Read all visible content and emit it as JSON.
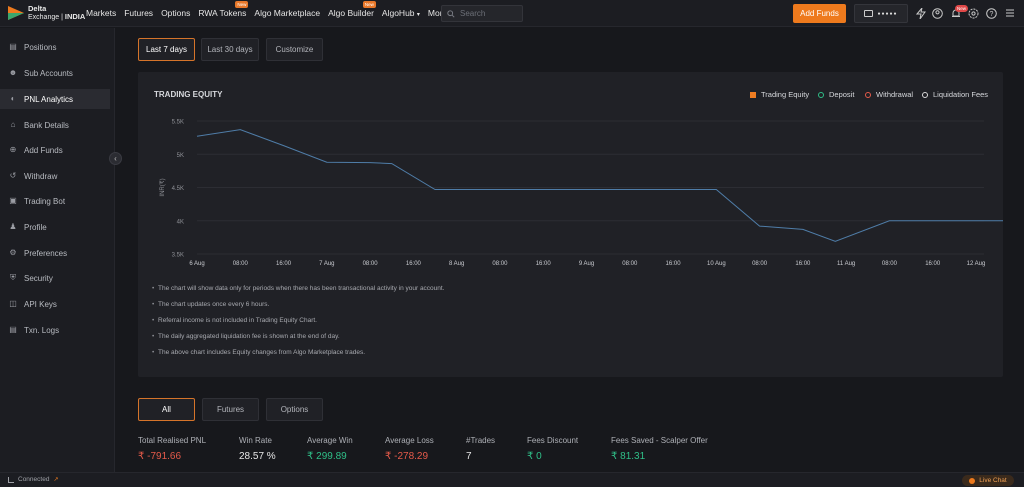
{
  "brand": {
    "line1": "Delta",
    "line2": "Exchange",
    "region": "INDIA"
  },
  "nav": [
    {
      "label": "Markets",
      "badge": ""
    },
    {
      "label": "Futures",
      "badge": ""
    },
    {
      "label": "Options",
      "badge": ""
    },
    {
      "label": "RWA Tokens",
      "badge": "New"
    },
    {
      "label": "Algo Marketplace",
      "badge": ""
    },
    {
      "label": "Algo Builder",
      "badge": "New"
    },
    {
      "label": "AlgoHub",
      "badge": "",
      "dropdown": true
    },
    {
      "label": "More",
      "badge": "",
      "dropdown": true
    }
  ],
  "search": {
    "placeholder": "Search"
  },
  "header": {
    "add_funds": "Add Funds",
    "wallet_masked": "●●●●●",
    "notif_badge": "New"
  },
  "sidebar": {
    "items": [
      {
        "label": "Positions",
        "icon": "positions-icon"
      },
      {
        "label": "Sub Accounts",
        "icon": "user-icon"
      },
      {
        "label": "PNL Analytics",
        "icon": "analytics-icon",
        "active": true
      },
      {
        "label": "Bank Details",
        "icon": "bank-icon"
      },
      {
        "label": "Add Funds",
        "icon": "plus-circle-icon"
      },
      {
        "label": "Withdraw",
        "icon": "withdraw-icon"
      },
      {
        "label": "Trading Bot",
        "icon": "bot-icon"
      },
      {
        "label": "Profile",
        "icon": "profile-icon"
      },
      {
        "label": "Preferences",
        "icon": "gear-icon"
      },
      {
        "label": "Security",
        "icon": "shield-icon"
      },
      {
        "label": "API Keys",
        "icon": "api-icon"
      },
      {
        "label": "Txn. Logs",
        "icon": "logs-icon"
      }
    ]
  },
  "range_tabs": [
    "Last 7 days",
    "Last 30 days",
    "Customize"
  ],
  "chart_panel": {
    "title": "TRADING EQUITY",
    "legend": [
      {
        "label": "Trading Equity",
        "color": "#ef7d22",
        "shape": "square"
      },
      {
        "label": "Deposit",
        "color": "#2fbf88",
        "shape": "circle"
      },
      {
        "label": "Withdrawal",
        "color": "#e55a4a",
        "shape": "circle"
      },
      {
        "label": "Liquidation Fees",
        "color": "#d9d9d9",
        "shape": "circle"
      }
    ],
    "notes": [
      "The chart will show data only for periods when there has been transactional activity in your account.",
      "The chart updates once every 6 hours.",
      "Referral income is not included in Trading Equity Chart.",
      "The daily aggregated liquidation fee is shown at the end of day.",
      "The above chart includes Equity changes from Algo Marketplace trades."
    ]
  },
  "chart_data": {
    "type": "line",
    "title": "TRADING EQUITY",
    "ylabel": "INR(₹)",
    "xlabel": "",
    "ylim": [
      3500,
      5500
    ],
    "yticks": [
      "3.5K",
      "4K",
      "4.5K",
      "5K",
      "5.5K"
    ],
    "x_ticks": [
      "6 Aug",
      "08:00",
      "16:00",
      "7 Aug",
      "08:00",
      "16:00",
      "8 Aug",
      "08:00",
      "16:00",
      "9 Aug",
      "08:00",
      "16:00",
      "10 Aug",
      "08:00",
      "16:00",
      "11 Aug",
      "08:00",
      "16:00",
      "12 Aug"
    ],
    "grid": true,
    "series": [
      {
        "name": "Trading Equity",
        "color": "#4f7da8",
        "points": [
          [
            "6 Aug 00:00",
            5270
          ],
          [
            "6 Aug 08:00",
            5370
          ],
          [
            "6 Aug 16:00",
            5130
          ],
          [
            "7 Aug 00:00",
            4880
          ],
          [
            "7 Aug 08:00",
            4875
          ],
          [
            "7 Aug 12:00",
            4860
          ],
          [
            "7 Aug 20:00",
            4470
          ],
          [
            "8 Aug 00:00",
            4470
          ],
          [
            "9 Aug 00:00",
            4470
          ],
          [
            "10 Aug 00:00",
            4470
          ],
          [
            "10 Aug 00:00",
            4470
          ],
          [
            "10 Aug 08:00",
            3920
          ],
          [
            "10 Aug 16:00",
            3870
          ],
          [
            "10 Aug 22:00",
            3690
          ],
          [
            "11 Aug 08:00",
            4000
          ],
          [
            "12 Aug 00:00",
            4000
          ],
          [
            "12 Aug 08:00",
            4000
          ]
        ]
      }
    ]
  },
  "segment_tabs": [
    "All",
    "Futures",
    "Options"
  ],
  "stats": [
    {
      "label": "Total Realised PNL",
      "value": "₹ -791.66",
      "color": "#e55a4a"
    },
    {
      "label": "Win Rate",
      "value": "28.57 %",
      "color": "#e6e6e6"
    },
    {
      "label": "Average Win",
      "value": "₹ 299.89",
      "color": "#2fbf88"
    },
    {
      "label": "Average Loss",
      "value": "₹ -278.29",
      "color": "#e55a4a"
    },
    {
      "label": "#Trades",
      "value": "7",
      "color": "#e6e6e6"
    },
    {
      "label": "Fees Discount",
      "value": "₹ 0",
      "color": "#2fbf88"
    },
    {
      "label": "Fees Saved - Scalper Offer",
      "value": "₹ 81.31",
      "color": "#2fbf88"
    }
  ],
  "footer": {
    "status": "Connected",
    "live_chat": "Live Chat"
  }
}
